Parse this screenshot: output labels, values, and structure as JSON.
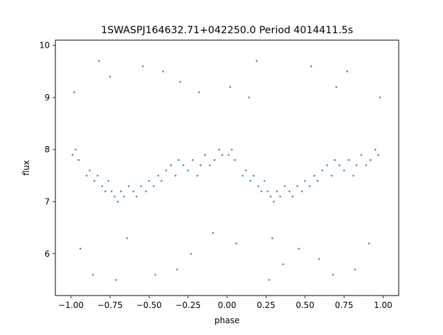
{
  "chart_data": {
    "type": "scatter",
    "title": "1SWASPJ164632.71+042250.0 Period 4014411.5s",
    "xlabel": "phase",
    "ylabel": "flux",
    "xlim": [
      -1.1,
      1.1
    ],
    "ylim": [
      5.2,
      10.1
    ],
    "xticks": [
      -1.0,
      -0.75,
      -0.5,
      -0.25,
      0.0,
      0.25,
      0.5,
      0.75,
      1.0
    ],
    "xtick_labels": [
      "−1.00",
      "−0.75",
      "−0.50",
      "−0.25",
      "0.00",
      "0.25",
      "0.50",
      "0.75",
      "1.00"
    ],
    "yticks": [
      6,
      7,
      8,
      9,
      10
    ],
    "ytick_labels": [
      "6",
      "7",
      "8",
      "9",
      "10"
    ],
    "grid": false,
    "marker_color": "#1f77b4",
    "series": [
      {
        "x": [
          -0.99,
          -0.97,
          -0.95,
          -0.9,
          -0.88,
          -0.85,
          -0.83,
          -0.8,
          -0.78,
          -0.76,
          -0.74,
          -0.72,
          -0.7,
          -0.68,
          -0.66,
          -0.63,
          -0.6,
          -0.58,
          -0.55,
          -0.52,
          -0.5,
          -0.47,
          -0.44,
          -0.42,
          -0.39,
          -0.36,
          -0.33,
          -0.31,
          -0.28,
          -0.25,
          -0.22,
          -0.19,
          -0.17,
          -0.14,
          -0.11,
          -0.08,
          -0.05,
          -0.03,
          0.01,
          0.03,
          0.05,
          0.1,
          0.12,
          0.15,
          0.17,
          0.2,
          0.22,
          0.24,
          0.26,
          0.28,
          0.3,
          0.32,
          0.34,
          0.37,
          0.4,
          0.42,
          0.45,
          0.48,
          0.5,
          0.53,
          0.56,
          0.58,
          0.61,
          0.64,
          0.67,
          0.69,
          0.72,
          0.75,
          0.78,
          0.81,
          0.83,
          0.86,
          0.89,
          0.92,
          0.95,
          0.97
        ],
        "y": [
          7.9,
          8.0,
          7.8,
          7.5,
          7.6,
          7.4,
          7.5,
          7.3,
          7.2,
          7.4,
          7.2,
          7.1,
          7.0,
          7.2,
          7.1,
          7.3,
          7.2,
          7.1,
          7.3,
          7.2,
          7.4,
          7.3,
          7.5,
          7.4,
          7.6,
          7.7,
          7.5,
          7.8,
          7.7,
          7.6,
          7.8,
          7.5,
          7.7,
          7.9,
          7.7,
          7.8,
          8.0,
          7.9,
          7.9,
          8.0,
          7.8,
          7.5,
          7.6,
          7.4,
          7.5,
          7.3,
          7.2,
          7.4,
          7.2,
          7.1,
          7.0,
          7.2,
          7.1,
          7.3,
          7.2,
          7.1,
          7.3,
          7.2,
          7.4,
          7.3,
          7.5,
          7.4,
          7.6,
          7.7,
          7.5,
          7.8,
          7.7,
          7.6,
          7.8,
          7.5,
          7.7,
          7.9,
          7.7,
          7.8,
          8.0,
          7.9
        ]
      }
    ],
    "outliers": {
      "x": [
        -0.98,
        -0.94,
        -0.86,
        -0.82,
        -0.75,
        -0.71,
        -0.64,
        -0.54,
        -0.46,
        -0.41,
        -0.32,
        -0.3,
        -0.23,
        -0.18,
        -0.09,
        0.02,
        0.06,
        0.14,
        0.19,
        0.27,
        0.29,
        0.36,
        0.46,
        0.54,
        0.59,
        0.68,
        0.7,
        0.77,
        0.82,
        0.91,
        0.98
      ],
      "y": [
        9.1,
        6.1,
        5.6,
        9.7,
        9.4,
        5.5,
        6.3,
        9.6,
        5.6,
        9.5,
        5.7,
        9.3,
        6.0,
        9.1,
        6.4,
        9.2,
        6.2,
        9.0,
        9.7,
        5.5,
        6.3,
        5.8,
        6.1,
        9.6,
        5.9,
        5.6,
        9.2,
        9.5,
        5.7,
        6.2,
        9.0
      ]
    }
  }
}
